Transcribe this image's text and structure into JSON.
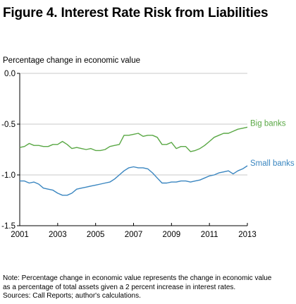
{
  "figure_title": "Figure 4. Interest Rate Risk from Liabilities",
  "notes": {
    "line1": "Note: Percentage change in economic value represents the change in economic value",
    "line2": "as a percentage of total assets given a 2 percent increase in interest rates.",
    "line3": "Sources: Call Reports; author's calculations."
  },
  "chart_data": {
    "type": "line",
    "title": "",
    "xlabel": "",
    "ylabel": "Percentage change in economic value",
    "xlim": [
      2001,
      2013
    ],
    "ylim": [
      -1.5,
      0.0
    ],
    "x_ticks": [
      2001,
      2003,
      2005,
      2007,
      2009,
      2011,
      2013
    ],
    "x_tick_labels": [
      "2001",
      "2003",
      "2005",
      "2007",
      "2009",
      "2011",
      "2013"
    ],
    "y_ticks": [
      0.0,
      -0.5,
      -1.0,
      -1.5
    ],
    "y_tick_labels": [
      "0.0",
      "-0.5",
      "-1.0",
      "-1.5"
    ],
    "grid": "horizontal",
    "series": [
      {
        "name": "Big banks",
        "color": "#5aa845",
        "x": [
          2001.0,
          2001.25,
          2001.5,
          2001.75,
          2002.0,
          2002.25,
          2002.5,
          2002.75,
          2003.0,
          2003.25,
          2003.5,
          2003.75,
          2004.0,
          2004.25,
          2004.5,
          2004.75,
          2005.0,
          2005.25,
          2005.5,
          2005.75,
          2006.0,
          2006.25,
          2006.5,
          2006.75,
          2007.0,
          2007.25,
          2007.5,
          2007.75,
          2008.0,
          2008.25,
          2008.5,
          2008.75,
          2009.0,
          2009.25,
          2009.5,
          2009.75,
          2010.0,
          2010.25,
          2010.5,
          2010.75,
          2011.0,
          2011.25,
          2011.5,
          2011.75,
          2012.0,
          2012.25,
          2012.5,
          2012.75,
          2013.0
        ],
        "values": [
          -0.73,
          -0.72,
          -0.69,
          -0.71,
          -0.71,
          -0.72,
          -0.72,
          -0.7,
          -0.7,
          -0.67,
          -0.7,
          -0.74,
          -0.73,
          -0.74,
          -0.75,
          -0.74,
          -0.76,
          -0.76,
          -0.75,
          -0.72,
          -0.71,
          -0.7,
          -0.61,
          -0.61,
          -0.6,
          -0.59,
          -0.62,
          -0.61,
          -0.61,
          -0.63,
          -0.7,
          -0.7,
          -0.68,
          -0.74,
          -0.72,
          -0.72,
          -0.77,
          -0.76,
          -0.74,
          -0.71,
          -0.67,
          -0.63,
          -0.61,
          -0.59,
          -0.59,
          -0.57,
          -0.55,
          -0.54,
          -0.53
        ]
      },
      {
        "name": "Small banks",
        "color": "#3a86c0",
        "x": [
          2001.0,
          2001.25,
          2001.5,
          2001.75,
          2002.0,
          2002.25,
          2002.5,
          2002.75,
          2003.0,
          2003.25,
          2003.5,
          2003.75,
          2004.0,
          2004.25,
          2004.5,
          2004.75,
          2005.0,
          2005.25,
          2005.5,
          2005.75,
          2006.0,
          2006.25,
          2006.5,
          2006.75,
          2007.0,
          2007.25,
          2007.5,
          2007.75,
          2008.0,
          2008.25,
          2008.5,
          2008.75,
          2009.0,
          2009.25,
          2009.5,
          2009.75,
          2010.0,
          2010.25,
          2010.5,
          2010.75,
          2011.0,
          2011.25,
          2011.5,
          2011.75,
          2012.0,
          2012.25,
          2012.5,
          2012.75,
          2013.0
        ],
        "values": [
          -1.06,
          -1.06,
          -1.08,
          -1.07,
          -1.09,
          -1.13,
          -1.14,
          -1.15,
          -1.18,
          -1.2,
          -1.2,
          -1.18,
          -1.14,
          -1.13,
          -1.12,
          -1.11,
          -1.1,
          -1.09,
          -1.08,
          -1.07,
          -1.04,
          -1.0,
          -0.96,
          -0.93,
          -0.92,
          -0.93,
          -0.93,
          -0.94,
          -0.98,
          -1.03,
          -1.08,
          -1.08,
          -1.07,
          -1.07,
          -1.06,
          -1.06,
          -1.07,
          -1.06,
          -1.05,
          -1.03,
          -1.01,
          -1.0,
          -0.98,
          -0.97,
          -0.96,
          -0.99,
          -0.96,
          -0.94,
          -0.91
        ]
      }
    ]
  }
}
